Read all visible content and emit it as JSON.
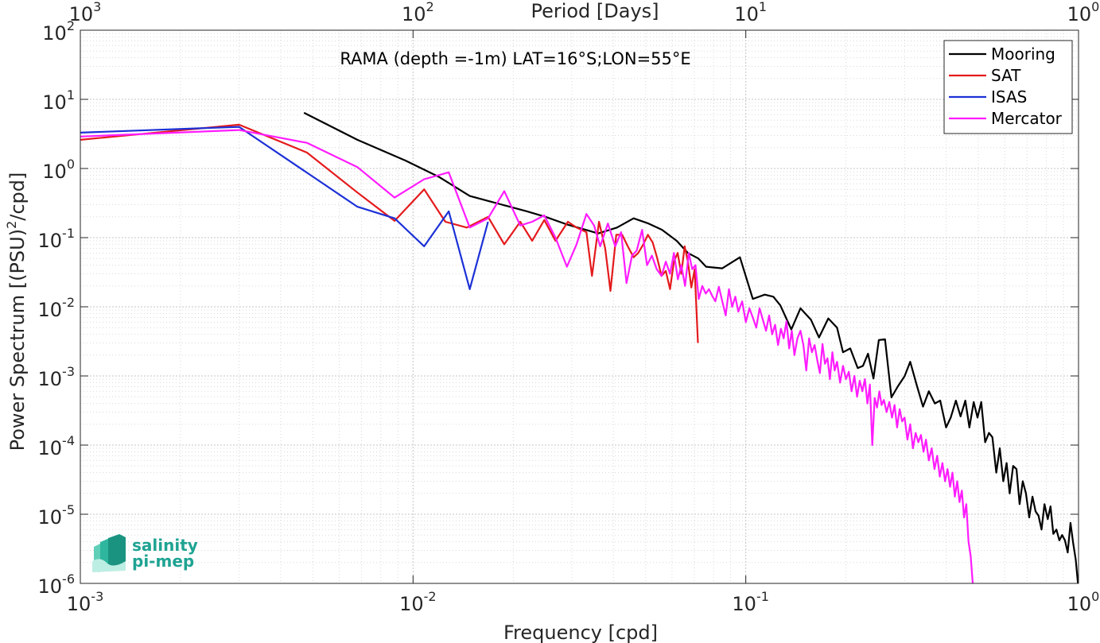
{
  "chart_data": {
    "type": "line",
    "title": "",
    "annotation": "RAMA (depth =-1m) LAT=16°S;LON=55°E",
    "xlabel": "Frequency [cpd]",
    "ylabel_parts": {
      "pre": "Power Spectrum [(PSU)",
      "sup": "2",
      "post": "/cpd]"
    },
    "top_xlabel": "Period [Days]",
    "xscale": "log",
    "yscale": "log",
    "xlim": [
      0.001,
      1
    ],
    "ylim": [
      1e-06,
      100
    ],
    "grid": true,
    "legend_position": "top-right",
    "bottom_ticks": [
      {
        "value": 0.001,
        "base": "10",
        "exp": "-3"
      },
      {
        "value": 0.01,
        "base": "10",
        "exp": "-2"
      },
      {
        "value": 0.1,
        "base": "10",
        "exp": "-1"
      },
      {
        "value": 1,
        "base": "10",
        "exp": "0"
      }
    ],
    "top_ticks": [
      {
        "value": 0.001,
        "base": "10",
        "exp": "3"
      },
      {
        "value": 0.01,
        "base": "10",
        "exp": "2"
      },
      {
        "value": 0.1,
        "base": "10",
        "exp": "1"
      },
      {
        "value": 1,
        "base": "10",
        "exp": "0"
      }
    ],
    "left_ticks": [
      {
        "value": 100,
        "base": "10",
        "exp": "2"
      },
      {
        "value": 10,
        "base": "10",
        "exp": "1"
      },
      {
        "value": 1,
        "base": "10",
        "exp": "0"
      },
      {
        "value": 0.1,
        "base": "10",
        "exp": "-1"
      },
      {
        "value": 0.01,
        "base": "10",
        "exp": "-2"
      },
      {
        "value": 0.001,
        "base": "10",
        "exp": "-3"
      },
      {
        "value": 0.0001,
        "base": "10",
        "exp": "-4"
      },
      {
        "value": 1e-05,
        "base": "10",
        "exp": "-5"
      },
      {
        "value": 1e-06,
        "base": "10",
        "exp": "-6"
      }
    ],
    "series": [
      {
        "name": "Mooring",
        "color": "#000000",
        "points": [
          [
            0.0047,
            6.4
          ],
          [
            0.0068,
            2.6
          ],
          [
            0.0095,
            1.3
          ],
          [
            0.012,
            0.75
          ],
          [
            0.0148,
            0.4
          ],
          [
            0.0185,
            0.3
          ],
          [
            0.022,
            0.24
          ],
          [
            0.025,
            0.2
          ],
          [
            0.029,
            0.155
          ],
          [
            0.033,
            0.13
          ],
          [
            0.036,
            0.115
          ],
          [
            0.041,
            0.14
          ],
          [
            0.046,
            0.19
          ],
          [
            0.051,
            0.16
          ],
          [
            0.056,
            0.13
          ],
          [
            0.062,
            0.09
          ],
          [
            0.067,
            0.06
          ],
          [
            0.072,
            0.05
          ],
          [
            0.076,
            0.038
          ],
          [
            0.085,
            0.036
          ],
          [
            0.096,
            0.052
          ],
          [
            0.105,
            0.013
          ],
          [
            0.114,
            0.015
          ],
          [
            0.121,
            0.014
          ],
          [
            0.127,
            0.0105
          ],
          [
            0.137,
            0.0047
          ],
          [
            0.146,
            0.0095
          ],
          [
            0.157,
            0.0065
          ],
          [
            0.166,
            0.0036
          ],
          [
            0.177,
            0.0068
          ],
          [
            0.188,
            0.005
          ],
          [
            0.196,
            0.0022
          ],
          [
            0.206,
            0.0025
          ],
          [
            0.217,
            0.0013
          ],
          [
            0.225,
            0.0014
          ],
          [
            0.233,
            0.0021
          ],
          [
            0.242,
            0.00092
          ],
          [
            0.251,
            0.0033
          ],
          [
            0.262,
            0.0034
          ],
          [
            0.274,
            0.00049
          ],
          [
            0.286,
            0.0007
          ],
          [
            0.3,
            0.00099
          ],
          [
            0.312,
            0.0016
          ],
          [
            0.326,
            0.00075
          ],
          [
            0.341,
            0.00036
          ],
          [
            0.355,
            0.0006
          ],
          [
            0.37,
            0.0004
          ],
          [
            0.384,
            0.00044
          ],
          [
            0.4,
            0.00018
          ],
          [
            0.413,
            0.00025
          ],
          [
            0.428,
            0.00044
          ],
          [
            0.442,
            0.00026
          ],
          [
            0.457,
            0.00044
          ],
          [
            0.47,
            0.00018
          ],
          [
            0.484,
            0.00042
          ],
          [
            0.497,
            0.00025
          ],
          [
            0.51,
            0.00042
          ],
          [
            0.524,
            0.00011
          ],
          [
            0.538,
            0.00015
          ],
          [
            0.551,
            0.00013
          ],
          [
            0.566,
            4e-05
          ],
          [
            0.58,
            9e-05
          ],
          [
            0.594,
            3e-05
          ],
          [
            0.608,
            5.5e-05
          ],
          [
            0.621,
            2e-05
          ],
          [
            0.636,
            5e-05
          ],
          [
            0.651,
            4.5e-05
          ],
          [
            0.665,
            1.4e-05
          ],
          [
            0.68,
            3e-05
          ],
          [
            0.695,
            2e-05
          ],
          [
            0.711,
            9e-06
          ],
          [
            0.727,
            1.8e-05
          ],
          [
            0.743,
            1.1e-05
          ],
          [
            0.758,
            9.5e-06
          ],
          [
            0.774,
            6e-06
          ],
          [
            0.79,
            1.4e-05
          ],
          [
            0.808,
            8.5e-06
          ],
          [
            0.824,
            1.3e-05
          ],
          [
            0.84,
            5.2e-06
          ],
          [
            0.858,
            6e-06
          ],
          [
            0.876,
            4.2e-06
          ],
          [
            0.893,
            5e-06
          ],
          [
            0.91,
            4.2e-06
          ],
          [
            0.928,
            2.8e-06
          ],
          [
            0.946,
            7.5e-06
          ],
          [
            0.964,
            3.8e-06
          ],
          [
            0.981,
            2.2e-06
          ],
          [
            0.996,
            9.9e-07
          ]
        ]
      },
      {
        "name": "SAT",
        "color": "#e41a1c",
        "points": [
          [
            0.001,
            2.6
          ],
          [
            0.003,
            4.3
          ],
          [
            0.0048,
            1.7
          ],
          [
            0.0068,
            0.45
          ],
          [
            0.0088,
            0.175
          ],
          [
            0.0108,
            0.5
          ],
          [
            0.0125,
            0.17
          ],
          [
            0.0145,
            0.14
          ],
          [
            0.0168,
            0.2
          ],
          [
            0.0188,
            0.08
          ],
          [
            0.021,
            0.17
          ],
          [
            0.0228,
            0.09
          ],
          [
            0.0248,
            0.18
          ],
          [
            0.0268,
            0.09
          ],
          [
            0.0292,
            0.17
          ],
          [
            0.031,
            0.14
          ],
          [
            0.0332,
            0.12
          ],
          [
            0.0345,
            0.028
          ],
          [
            0.0362,
            0.17
          ],
          [
            0.0378,
            0.07
          ],
          [
            0.0392,
            0.017
          ],
          [
            0.0408,
            0.11
          ],
          [
            0.0425,
            0.11
          ],
          [
            0.0442,
            0.075
          ],
          [
            0.046,
            0.052
          ],
          [
            0.0475,
            0.06
          ],
          [
            0.0492,
            0.08
          ],
          [
            0.0508,
            0.11
          ],
          [
            0.0525,
            0.085
          ],
          [
            0.0542,
            0.05
          ],
          [
            0.0558,
            0.028
          ],
          [
            0.0575,
            0.033
          ],
          [
            0.0592,
            0.018
          ],
          [
            0.0608,
            0.045
          ],
          [
            0.0624,
            0.06
          ],
          [
            0.064,
            0.03
          ],
          [
            0.0655,
            0.075
          ],
          [
            0.067,
            0.045
          ],
          [
            0.0686,
            0.019
          ],
          [
            0.0702,
            0.035
          ],
          [
            0.0718,
            0.003
          ]
        ]
      },
      {
        "name": "ISAS",
        "color": "#1c31d6",
        "points": [
          [
            0.001,
            3.3
          ],
          [
            0.003,
            4.0
          ],
          [
            0.0068,
            0.28
          ],
          [
            0.0088,
            0.19
          ],
          [
            0.0108,
            0.075
          ],
          [
            0.0128,
            0.24
          ],
          [
            0.0148,
            0.018
          ],
          [
            0.0168,
            0.17
          ]
        ]
      },
      {
        "name": "Mercator",
        "color": "#ff1cff",
        "points": [
          [
            0.001,
            2.9
          ],
          [
            0.003,
            3.6
          ],
          [
            0.0048,
            2.35
          ],
          [
            0.0068,
            1.05
          ],
          [
            0.0088,
            0.38
          ],
          [
            0.0108,
            0.7
          ],
          [
            0.0128,
            0.88
          ],
          [
            0.0148,
            0.14
          ],
          [
            0.0168,
            0.19
          ],
          [
            0.0188,
            0.47
          ],
          [
            0.021,
            0.15
          ],
          [
            0.0228,
            0.17
          ],
          [
            0.0248,
            0.21
          ],
          [
            0.0268,
            0.1
          ],
          [
            0.029,
            0.038
          ],
          [
            0.031,
            0.08
          ],
          [
            0.0332,
            0.22
          ],
          [
            0.035,
            0.15
          ],
          [
            0.0365,
            0.075
          ],
          [
            0.0385,
            0.16
          ],
          [
            0.0405,
            0.075
          ],
          [
            0.0422,
            0.12
          ],
          [
            0.0438,
            0.022
          ],
          [
            0.0455,
            0.055
          ],
          [
            0.047,
            0.065
          ],
          [
            0.0488,
            0.13
          ],
          [
            0.0505,
            0.04
          ],
          [
            0.0522,
            0.055
          ],
          [
            0.054,
            0.035
          ],
          [
            0.0558,
            0.028
          ],
          [
            0.0575,
            0.045
          ],
          [
            0.0592,
            0.03
          ],
          [
            0.0608,
            0.06
          ],
          [
            0.0625,
            0.025
          ],
          [
            0.064,
            0.04
          ],
          [
            0.0657,
            0.02
          ],
          [
            0.0674,
            0.06
          ],
          [
            0.069,
            0.035
          ],
          [
            0.0706,
            0.04
          ],
          [
            0.0722,
            0.013
          ],
          [
            0.074,
            0.02
          ],
          [
            0.0758,
            0.0155
          ],
          [
            0.0775,
            0.018
          ],
          [
            0.0792,
            0.0145
          ],
          [
            0.081,
            0.012
          ],
          [
            0.083,
            0.0195
          ],
          [
            0.085,
            0.012
          ],
          [
            0.087,
            0.0075
          ],
          [
            0.089,
            0.018
          ],
          [
            0.091,
            0.01
          ],
          [
            0.093,
            0.014
          ],
          [
            0.095,
            0.0085
          ],
          [
            0.0975,
            0.012
          ],
          [
            0.1,
            0.006
          ],
          [
            0.1025,
            0.0095
          ],
          [
            0.105,
            0.007
          ],
          [
            0.1075,
            0.005
          ],
          [
            0.11,
            0.0095
          ],
          [
            0.1125,
            0.0065
          ],
          [
            0.115,
            0.0045
          ],
          [
            0.1175,
            0.0075
          ],
          [
            0.12,
            0.004
          ],
          [
            0.1225,
            0.0055
          ],
          [
            0.125,
            0.0028
          ],
          [
            0.1275,
            0.0048
          ],
          [
            0.13,
            0.0035
          ],
          [
            0.1325,
            0.0062
          ],
          [
            0.135,
            0.0025
          ],
          [
            0.1375,
            0.0045
          ],
          [
            0.14,
            0.002
          ],
          [
            0.143,
            0.0035
          ],
          [
            0.146,
            0.0045
          ],
          [
            0.149,
            0.0028
          ],
          [
            0.152,
            0.0012
          ],
          [
            0.155,
            0.0035
          ],
          [
            0.158,
            0.0022
          ],
          [
            0.161,
            0.0028
          ],
          [
            0.164,
            0.0017
          ],
          [
            0.167,
            0.0011
          ],
          [
            0.17,
            0.0029
          ],
          [
            0.173,
            0.0015
          ],
          [
            0.176,
            0.0018
          ],
          [
            0.179,
            0.0009
          ],
          [
            0.182,
            0.0022
          ],
          [
            0.185,
            0.0012
          ],
          [
            0.188,
            0.0016
          ],
          [
            0.192,
            0.0008
          ],
          [
            0.196,
            0.0014
          ],
          [
            0.2,
            0.0009
          ],
          [
            0.204,
            0.00115
          ],
          [
            0.208,
            0.0006
          ],
          [
            0.212,
            0.001
          ],
          [
            0.216,
            0.0005
          ],
          [
            0.22,
            0.00085
          ],
          [
            0.224,
            0.0006
          ],
          [
            0.228,
            0.0009
          ],
          [
            0.232,
            0.0004
          ],
          [
            0.236,
            0.00075
          ],
          [
            0.24,
            0.0001
          ],
          [
            0.244,
            0.00048
          ],
          [
            0.248,
            0.00035
          ],
          [
            0.252,
            0.0006
          ],
          [
            0.256,
            0.00038
          ],
          [
            0.26,
            0.00045
          ],
          [
            0.265,
            0.0003
          ],
          [
            0.27,
            0.00042
          ],
          [
            0.275,
            0.00025
          ],
          [
            0.28,
            0.00038
          ],
          [
            0.285,
            0.00018
          ],
          [
            0.29,
            0.00033
          ],
          [
            0.295,
            0.00022
          ],
          [
            0.3,
            0.00025
          ],
          [
            0.306,
            0.00012
          ],
          [
            0.312,
            0.0002
          ],
          [
            0.318,
            9e-05
          ],
          [
            0.324,
            0.00015
          ],
          [
            0.33,
            0.00011
          ],
          [
            0.336,
            0.00014
          ],
          [
            0.342,
            8e-05
          ],
          [
            0.348,
            0.00012
          ],
          [
            0.355,
            6e-05
          ],
          [
            0.362,
            9e-05
          ],
          [
            0.369,
            4.5e-05
          ],
          [
            0.376,
            7e-05
          ],
          [
            0.383,
            3.5e-05
          ],
          [
            0.39,
            5.5e-05
          ],
          [
            0.397,
            3e-05
          ],
          [
            0.404,
            4.5e-05
          ],
          [
            0.411,
            2.5e-05
          ],
          [
            0.418,
            4e-05
          ],
          [
            0.425,
            1.8e-05
          ],
          [
            0.432,
            3e-05
          ],
          [
            0.439,
            1.5e-05
          ],
          [
            0.446,
            2.2e-05
          ],
          [
            0.453,
            9e-06
          ],
          [
            0.46,
            1.4e-05
          ],
          [
            0.467,
            4e-06
          ],
          [
            0.474,
            2.5e-06
          ],
          [
            0.481,
            1e-06
          ]
        ]
      }
    ]
  },
  "logo": {
    "line1": "salinity",
    "line2": "pi-mep"
  }
}
